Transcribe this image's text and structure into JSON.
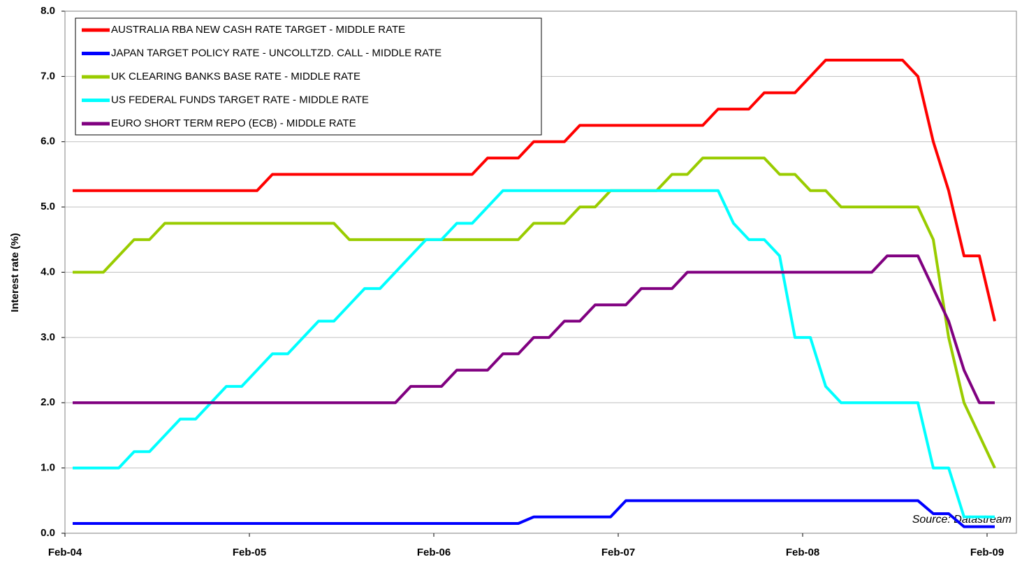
{
  "chart_data": {
    "type": "line",
    "y_label": "Interest rate (%)",
    "annotation": "Source: Datastream",
    "grid": true,
    "legend": "upper-left",
    "ylim": [
      0,
      8
    ],
    "yticks": [
      {
        "value": 0,
        "label": "0.0"
      },
      {
        "value": 1,
        "label": "1.0"
      },
      {
        "value": 2,
        "label": "2.0"
      },
      {
        "value": 3,
        "label": "3.0"
      },
      {
        "value": 4,
        "label": "4.0"
      },
      {
        "value": 5,
        "label": "5.0"
      },
      {
        "value": 6,
        "label": "6.0"
      },
      {
        "value": 7,
        "label": "7.0"
      },
      {
        "value": 8,
        "label": "8.0"
      }
    ],
    "categories": [
      "Feb-04",
      null,
      null,
      null,
      null,
      null,
      null,
      null,
      null,
      null,
      null,
      null,
      "Feb-05",
      null,
      null,
      null,
      null,
      null,
      null,
      null,
      null,
      null,
      null,
      null,
      "Feb-06",
      null,
      null,
      null,
      null,
      null,
      null,
      null,
      null,
      null,
      null,
      null,
      "Feb-07",
      null,
      null,
      null,
      null,
      null,
      null,
      null,
      null,
      null,
      null,
      null,
      "Feb-08",
      null,
      null,
      null,
      null,
      null,
      null,
      null,
      null,
      null,
      null,
      null,
      "Feb-09"
    ],
    "series": [
      {
        "name": "AUSTRALIA RBA NEW CASH RATE TARGET - MIDDLE RATE",
        "color": "#ff0000",
        "values": [
          5.25,
          5.25,
          5.25,
          5.25,
          5.25,
          5.25,
          5.25,
          5.25,
          5.25,
          5.25,
          5.25,
          5.25,
          5.25,
          5.5,
          5.5,
          5.5,
          5.5,
          5.5,
          5.5,
          5.5,
          5.5,
          5.5,
          5.5,
          5.5,
          5.5,
          5.5,
          5.5,
          5.75,
          5.75,
          5.75,
          6.0,
          6.0,
          6.0,
          6.25,
          6.25,
          6.25,
          6.25,
          6.25,
          6.25,
          6.25,
          6.25,
          6.25,
          6.5,
          6.5,
          6.5,
          6.75,
          6.75,
          6.75,
          7.0,
          7.25,
          7.25,
          7.25,
          7.25,
          7.25,
          7.25,
          7.0,
          6.0,
          5.25,
          4.25,
          4.25,
          3.25
        ]
      },
      {
        "name": "JAPAN TARGET POLICY RATE - UNCOLLTZD. CALL - MIDDLE RATE",
        "color": "#0000ff",
        "values": [
          0.15,
          0.15,
          0.15,
          0.15,
          0.15,
          0.15,
          0.15,
          0.15,
          0.15,
          0.15,
          0.15,
          0.15,
          0.15,
          0.15,
          0.15,
          0.15,
          0.15,
          0.15,
          0.15,
          0.15,
          0.15,
          0.15,
          0.15,
          0.15,
          0.15,
          0.15,
          0.15,
          0.15,
          0.15,
          0.15,
          0.25,
          0.25,
          0.25,
          0.25,
          0.25,
          0.25,
          0.5,
          0.5,
          0.5,
          0.5,
          0.5,
          0.5,
          0.5,
          0.5,
          0.5,
          0.5,
          0.5,
          0.5,
          0.5,
          0.5,
          0.5,
          0.5,
          0.5,
          0.5,
          0.5,
          0.5,
          0.3,
          0.3,
          0.1,
          0.1,
          0.1
        ]
      },
      {
        "name": "UK CLEARING BANKS BASE RATE - MIDDLE RATE",
        "color": "#99cc00",
        "values": [
          4.0,
          4.0,
          4.0,
          4.25,
          4.5,
          4.5,
          4.75,
          4.75,
          4.75,
          4.75,
          4.75,
          4.75,
          4.75,
          4.75,
          4.75,
          4.75,
          4.75,
          4.75,
          4.5,
          4.5,
          4.5,
          4.5,
          4.5,
          4.5,
          4.5,
          4.5,
          4.5,
          4.5,
          4.5,
          4.5,
          4.75,
          4.75,
          4.75,
          5.0,
          5.0,
          5.25,
          5.25,
          5.25,
          5.25,
          5.5,
          5.5,
          5.75,
          5.75,
          5.75,
          5.75,
          5.75,
          5.5,
          5.5,
          5.25,
          5.25,
          5.0,
          5.0,
          5.0,
          5.0,
          5.0,
          5.0,
          4.5,
          3.0,
          2.0,
          1.5,
          1.0
        ]
      },
      {
        "name": "US FEDERAL FUNDS TARGET RATE - MIDDLE RATE",
        "color": "#00ffff",
        "values": [
          1.0,
          1.0,
          1.0,
          1.0,
          1.25,
          1.25,
          1.5,
          1.75,
          1.75,
          2.0,
          2.25,
          2.25,
          2.5,
          2.75,
          2.75,
          3.0,
          3.25,
          3.25,
          3.5,
          3.75,
          3.75,
          4.0,
          4.25,
          4.5,
          4.5,
          4.75,
          4.75,
          5.0,
          5.25,
          5.25,
          5.25,
          5.25,
          5.25,
          5.25,
          5.25,
          5.25,
          5.25,
          5.25,
          5.25,
          5.25,
          5.25,
          5.25,
          5.25,
          4.75,
          4.5,
          4.5,
          4.25,
          3.0,
          3.0,
          2.25,
          2.0,
          2.0,
          2.0,
          2.0,
          2.0,
          2.0,
          1.0,
          1.0,
          0.25,
          0.25,
          0.25
        ]
      },
      {
        "name": "EURO SHORT TERM REPO (ECB) - MIDDLE RATE",
        "color": "#800080",
        "values": [
          2.0,
          2.0,
          2.0,
          2.0,
          2.0,
          2.0,
          2.0,
          2.0,
          2.0,
          2.0,
          2.0,
          2.0,
          2.0,
          2.0,
          2.0,
          2.0,
          2.0,
          2.0,
          2.0,
          2.0,
          2.0,
          2.0,
          2.25,
          2.25,
          2.25,
          2.5,
          2.5,
          2.5,
          2.75,
          2.75,
          3.0,
          3.0,
          3.25,
          3.25,
          3.5,
          3.5,
          3.5,
          3.75,
          3.75,
          3.75,
          4.0,
          4.0,
          4.0,
          4.0,
          4.0,
          4.0,
          4.0,
          4.0,
          4.0,
          4.0,
          4.0,
          4.0,
          4.0,
          4.25,
          4.25,
          4.25,
          3.75,
          3.25,
          2.5,
          2.0,
          2.0
        ]
      }
    ]
  }
}
